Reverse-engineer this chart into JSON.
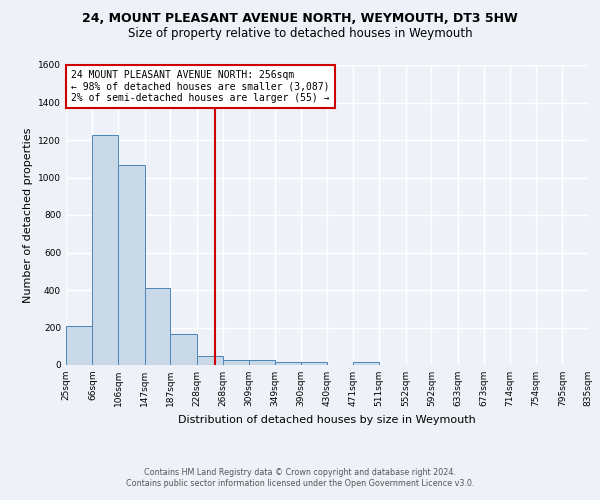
{
  "title": "24, MOUNT PLEASANT AVENUE NORTH, WEYMOUTH, DT3 5HW",
  "subtitle": "Size of property relative to detached houses in Weymouth",
  "xlabel": "Distribution of detached houses by size in Weymouth",
  "ylabel": "Number of detached properties",
  "footnote1": "Contains HM Land Registry data © Crown copyright and database right 2024.",
  "footnote2": "Contains public sector information licensed under the Open Government Licence v3.0.",
  "annotation_line1": "24 MOUNT PLEASANT AVENUE NORTH: 256sqm",
  "annotation_line2": "← 98% of detached houses are smaller (3,087)",
  "annotation_line3": "2% of semi-detached houses are larger (55) →",
  "bar_edges": [
    25,
    66,
    106,
    147,
    187,
    228,
    268,
    309,
    349,
    390,
    430,
    471,
    511,
    552,
    592,
    633,
    673,
    714,
    754,
    795,
    835
  ],
  "bar_heights": [
    207,
    1228,
    1068,
    410,
    163,
    50,
    27,
    27,
    15,
    15,
    0,
    15,
    0,
    0,
    0,
    0,
    0,
    0,
    0,
    0
  ],
  "bar_color": "#c9d9e8",
  "bar_edge_color": "#4a86b8",
  "vline_x": 256,
  "vline_color": "#cc0000",
  "ylim": [
    0,
    1600
  ],
  "yticks": [
    0,
    200,
    400,
    600,
    800,
    1000,
    1200,
    1400,
    1600
  ],
  "bg_color": "#eef2f8",
  "plot_bg_color": "#eef2f8",
  "grid_color": "#ffffff",
  "annotation_box_color": "#cc0000",
  "title_fontsize": 9,
  "subtitle_fontsize": 8.5,
  "tick_label_fontsize": 6.5,
  "ylabel_fontsize": 8,
  "xlabel_fontsize": 8,
  "annotation_fontsize": 7,
  "footnote_fontsize": 5.8
}
